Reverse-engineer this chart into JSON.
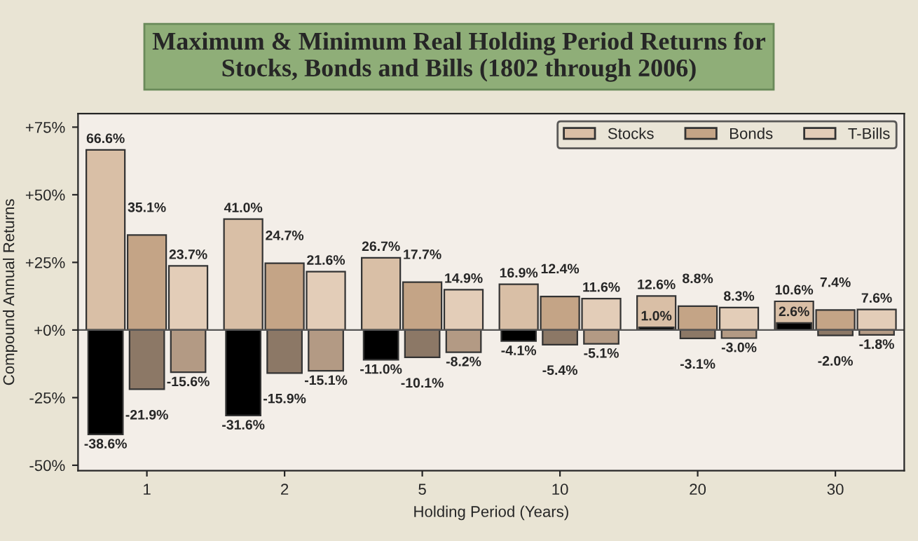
{
  "chart_data": {
    "type": "bar",
    "title": "Maximum & Minimum Real Holding Period Returns for\nStocks, Bonds and Bills (1802 through 2006)",
    "xlabel": "Holding Period (Years)",
    "ylabel": "Compound Annual Returns",
    "categories": [
      "1",
      "2",
      "5",
      "10",
      "20",
      "30"
    ],
    "series": [
      {
        "name": "Stocks",
        "color": "#d9bfa6",
        "values": [
          66.6,
          41.0,
          26.7,
          16.9,
          12.6,
          10.6
        ],
        "value_labels": [
          "66.6%",
          "41.0%",
          "26.7%",
          "16.9%",
          "12.6%",
          "10.6%"
        ]
      },
      {
        "color": "#000000",
        "values": [
          -38.6,
          -31.6,
          -11.0,
          -4.1,
          1.0,
          2.6
        ],
        "value_labels": [
          "-38.6%",
          "-31.6%",
          "-11.0%",
          "-4.1%",
          "1.0%",
          "2.6%"
        ]
      },
      {
        "name": "Bonds",
        "color": "#c4a486",
        "values": [
          35.1,
          24.7,
          17.7,
          12.4,
          8.8,
          7.4
        ],
        "value_labels": [
          "35.1%",
          "24.7%",
          "17.7%",
          "12.4%",
          "8.8%",
          "7.4%"
        ]
      },
      {
        "color": "#8c7866",
        "values": [
          -21.9,
          -15.9,
          -10.1,
          -5.4,
          -3.1,
          -2.0
        ],
        "value_labels": [
          "-21.9%",
          "-15.9%",
          "-10.1%",
          "-5.4%",
          "-3.1%",
          "-2.0%"
        ]
      },
      {
        "name": "T-Bills",
        "color": "#e3cdb8",
        "values": [
          23.7,
          21.6,
          14.9,
          11.6,
          8.3,
          7.6
        ],
        "value_labels": [
          "23.7%",
          "21.6%",
          "14.9%",
          "11.6%",
          "8.3%",
          "7.6%"
        ]
      },
      {
        "color": "#b39a84",
        "values": [
          -15.6,
          -15.1,
          -8.2,
          -5.1,
          -3.0,
          -1.8
        ],
        "value_labels": [
          "-15.6%",
          "-15.1%",
          "-8.2%",
          "-5.1%",
          "-3.0%",
          "-1.8%"
        ]
      }
    ],
    "ylim": [
      -52,
      80
    ],
    "yticks": [
      {
        "value": -50,
        "label": "-50%"
      },
      {
        "value": -25,
        "label": "-25%"
      },
      {
        "value": 0,
        "label": "+0%"
      },
      {
        "value": 25,
        "label": "+25%"
      },
      {
        "value": 50,
        "label": "+50%"
      },
      {
        "value": 75,
        "label": "+75%"
      }
    ],
    "ref_lines": [
      {
        "axis": "y",
        "value": 0,
        "color": "#555555"
      }
    ],
    "legend": "top right"
  }
}
